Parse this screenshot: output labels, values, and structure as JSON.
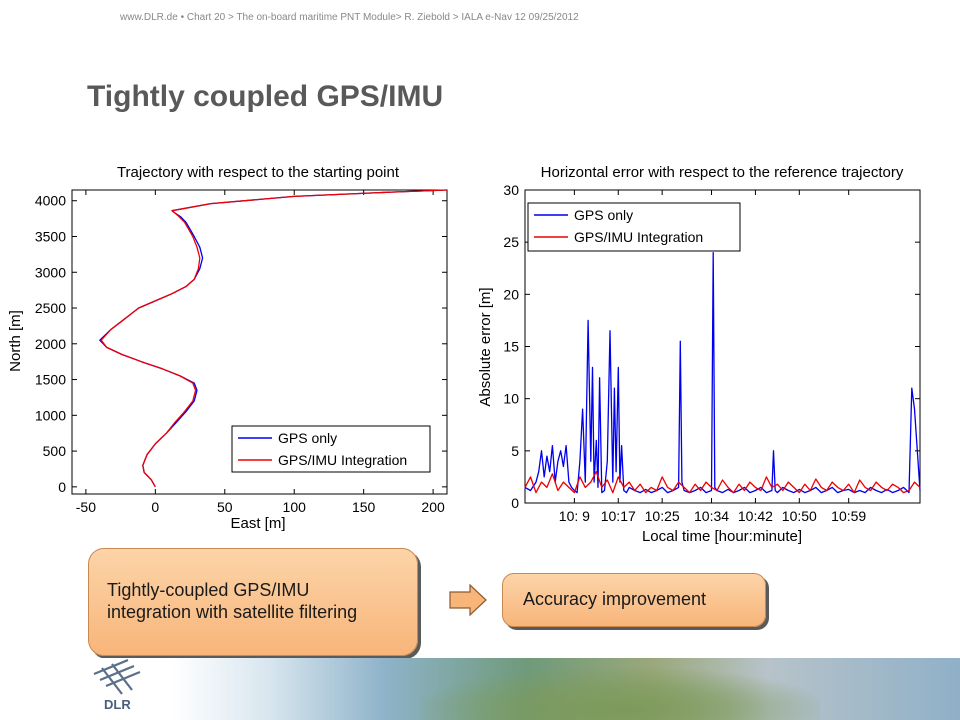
{
  "header": {
    "site": "www.DLR.de",
    "chart": "Chart 20",
    "breadcrumb": "> The on-board maritime PNT Module> R. Ziebold > IALA e-Nav 12 09/25/2012"
  },
  "page_title": "Tightly coupled GPS/IMU",
  "colors": {
    "gps_only": "#0000ee",
    "gps_imu": "#ee0000",
    "box_fill": "#f8b57a"
  },
  "boxes": {
    "left_line1": "Tightly-coupled GPS/IMU",
    "left_line2": "integration with satellite filtering",
    "right": "Accuracy improvement"
  },
  "logo_text": "DLR",
  "chart_data": [
    {
      "type": "line",
      "title": "Trajectory with respect to the starting point",
      "xlabel": "East [m]",
      "ylabel": "North [m]",
      "xlim": [
        -60,
        210
      ],
      "ylim": [
        -100,
        4150
      ],
      "xticks": [
        -50,
        0,
        50,
        100,
        150,
        200
      ],
      "yticks": [
        0,
        500,
        1000,
        1500,
        2000,
        2500,
        3000,
        3500,
        4000
      ],
      "legend_position": "bottom-right",
      "series": [
        {
          "name": "GPS only",
          "x": [
            0,
            -3,
            -8,
            -9,
            -6,
            0,
            8,
            15,
            22,
            28,
            30,
            28,
            18,
            5,
            -10,
            -24,
            -35,
            -40,
            -32,
            -22,
            -12,
            0,
            12,
            22,
            28,
            32,
            34,
            32,
            28,
            25,
            22,
            18,
            14,
            12,
            40,
            100,
            170,
            210
          ],
          "y": [
            0,
            100,
            200,
            300,
            450,
            600,
            750,
            900,
            1050,
            1200,
            1350,
            1450,
            1550,
            1650,
            1750,
            1850,
            1950,
            2050,
            2200,
            2350,
            2500,
            2600,
            2700,
            2800,
            2900,
            3050,
            3200,
            3350,
            3500,
            3600,
            3700,
            3780,
            3830,
            3860,
            3960,
            4060,
            4120,
            4150
          ]
        },
        {
          "name": "GPS/IMU Integration",
          "x": [
            0,
            -3,
            -8,
            -9,
            -6,
            0,
            8,
            14,
            21,
            27,
            29,
            27,
            18,
            5,
            -10,
            -24,
            -35,
            -39,
            -32,
            -22,
            -12,
            0,
            12,
            22,
            28,
            31,
            32,
            30,
            27,
            24,
            21,
            17,
            14,
            12,
            40,
            100,
            170,
            210
          ],
          "y": [
            0,
            100,
            200,
            300,
            450,
            600,
            750,
            900,
            1050,
            1200,
            1350,
            1450,
            1550,
            1650,
            1750,
            1850,
            1950,
            2050,
            2200,
            2350,
            2500,
            2600,
            2700,
            2800,
            2900,
            3050,
            3200,
            3350,
            3500,
            3600,
            3700,
            3780,
            3830,
            3860,
            3960,
            4060,
            4120,
            4150
          ]
        }
      ]
    },
    {
      "type": "line",
      "title": "Horizontal error with respect to the reference trajectory",
      "xlabel": "Local time [hour:minute]",
      "ylabel": "Absolute error [m]",
      "xlim": [
        0,
        72
      ],
      "ylim": [
        0,
        30
      ],
      "xticks": [
        9,
        17,
        25,
        34,
        42,
        50,
        59
      ],
      "xtick_labels": [
        "10: 9",
        "10:17",
        "10:25",
        "10:34",
        "10:42",
        "10:50",
        "10:59"
      ],
      "yticks": [
        0,
        5,
        10,
        15,
        20,
        25,
        30
      ],
      "legend_position": "top-left",
      "series": [
        {
          "name": "GPS only",
          "x": [
            0,
            1,
            2,
            2.5,
            3,
            3.5,
            4,
            4.5,
            5,
            5.5,
            6,
            6.5,
            7,
            7.5,
            8,
            8.5,
            9,
            9.5,
            10,
            10.5,
            11,
            11.5,
            12,
            12.3,
            12.6,
            13,
            13.3,
            13.6,
            14,
            14.5,
            15,
            15.5,
            16,
            16.3,
            16.6,
            17,
            17.3,
            17.6,
            18,
            18.5,
            19,
            20,
            21,
            22,
            23,
            24,
            25,
            26,
            27,
            28,
            28.3,
            28.6,
            29,
            30,
            31,
            32,
            33,
            34,
            34.3,
            34.6,
            35,
            36,
            37,
            38,
            39,
            40,
            41,
            42,
            43,
            44,
            45,
            45.3,
            45.6,
            46,
            47,
            48,
            49,
            50,
            51,
            52,
            53,
            54,
            55,
            56,
            57,
            58,
            59,
            60,
            61,
            62,
            63,
            64,
            65,
            66,
            67,
            68,
            69,
            70,
            70.5,
            71,
            72
          ],
          "y": [
            1.5,
            1.2,
            2,
            3,
            5,
            2.5,
            4.5,
            3,
            5.5,
            2,
            4,
            5,
            3.5,
            5.5,
            2,
            1.5,
            1.2,
            1,
            4,
            9,
            2,
            17.5,
            4,
            13,
            2,
            6,
            1.5,
            12,
            1,
            1.2,
            4,
            16.5,
            2,
            11,
            3,
            13,
            2,
            5.5,
            1.2,
            1,
            1.5,
            1.2,
            1,
            1.3,
            1,
            1.2,
            1.5,
            1,
            1.2,
            1.5,
            15.5,
            2,
            1.2,
            1,
            1.2,
            1.5,
            1,
            1.2,
            24,
            1.5,
            1.2,
            1,
            1.3,
            1,
            1.2,
            1.5,
            1,
            1.2,
            1.5,
            1,
            1.2,
            5,
            1.2,
            1,
            1.5,
            1.2,
            1,
            1.3,
            1,
            1.2,
            1.5,
            1,
            1.2,
            1.5,
            1,
            1.2,
            1.3,
            1,
            1.2,
            1,
            1.5,
            1.2,
            1,
            1.3,
            1,
            1.2,
            1.5,
            1,
            11,
            9,
            1.2
          ]
        },
        {
          "name": "GPS/IMU Integration",
          "x": [
            0,
            1,
            2,
            3,
            4,
            5,
            6,
            7,
            8,
            9,
            10,
            11,
            12,
            13,
            14,
            15,
            16,
            17,
            18,
            19,
            20,
            21,
            22,
            23,
            24,
            25,
            26,
            27,
            28,
            29,
            30,
            31,
            32,
            33,
            34,
            35,
            36,
            37,
            38,
            39,
            40,
            41,
            42,
            43,
            44,
            45,
            46,
            47,
            48,
            49,
            50,
            51,
            52,
            53,
            54,
            55,
            56,
            57,
            58,
            59,
            60,
            61,
            62,
            63,
            64,
            65,
            66,
            67,
            68,
            69,
            70,
            71,
            72
          ],
          "y": [
            1.5,
            2.5,
            1,
            2,
            1.5,
            2.8,
            1.2,
            2,
            1.5,
            1,
            2.5,
            1.5,
            2,
            3,
            1.5,
            2.2,
            1,
            2.5,
            1.5,
            2,
            1.2,
            1.8,
            1,
            1.5,
            1.2,
            2.5,
            1.5,
            1.2,
            2,
            1.5,
            1,
            1.8,
            1.2,
            2,
            1.5,
            1.2,
            2.2,
            1.5,
            1,
            1.8,
            1.2,
            2,
            1.5,
            1.2,
            2.5,
            1.5,
            1.8,
            1.2,
            2,
            1.5,
            1,
            1.8,
            1.2,
            2.3,
            1.5,
            1.2,
            2,
            1.5,
            1.2,
            1.8,
            1,
            2.2,
            1.5,
            1.2,
            2,
            1.5,
            1.2,
            1.8,
            1.5,
            1,
            1.2,
            2,
            1.5
          ]
        }
      ]
    }
  ]
}
